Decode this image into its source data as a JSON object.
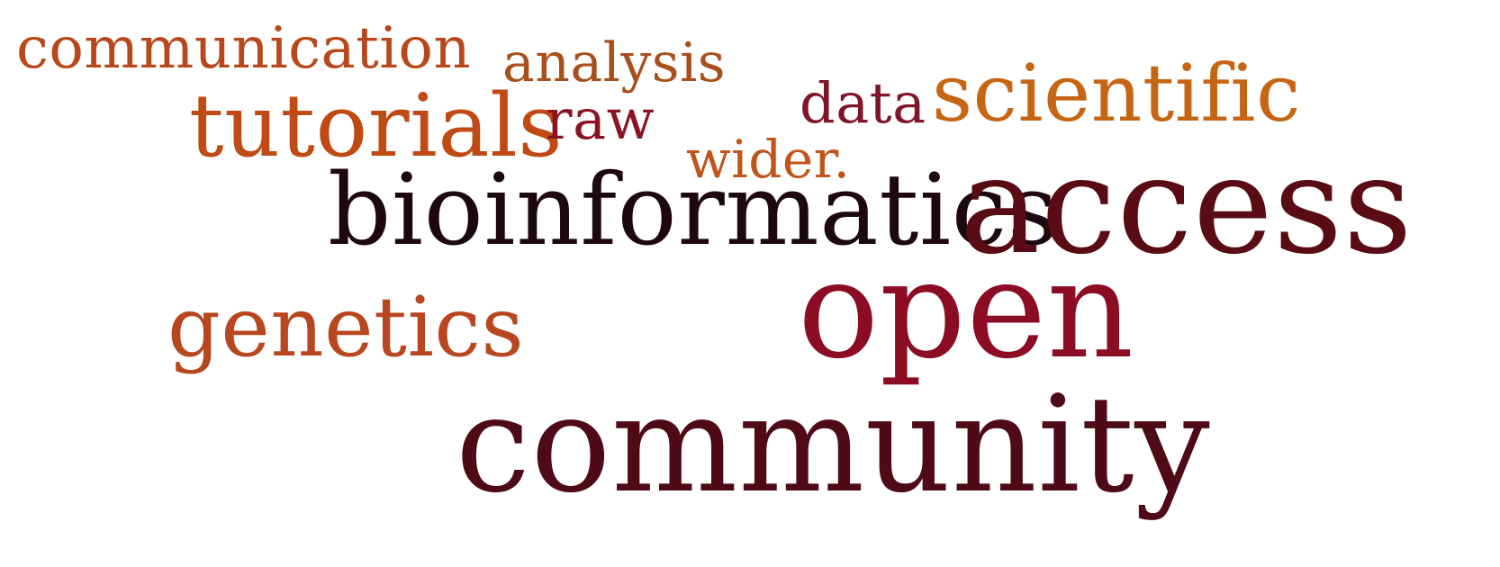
{
  "cloud": {
    "words": [
      {
        "text": "communication",
        "color": "#b8481c"
      },
      {
        "text": "analysis",
        "color": "#a8501c"
      },
      {
        "text": "tutorials",
        "color": "#c04a14"
      },
      {
        "text": "raw",
        "color": "#8a1420"
      },
      {
        "text": "data",
        "color": "#7e1628"
      },
      {
        "text": "scientific",
        "color": "#c66614"
      },
      {
        "text": "wider.",
        "color": "#c0541a"
      },
      {
        "text": "bioinformatics",
        "color": "#1e0810"
      },
      {
        "text": "access",
        "color": "#5a0c14"
      },
      {
        "text": "open",
        "color": "#8c0c24"
      },
      {
        "text": "genetics",
        "color": "#b8461e"
      },
      {
        "text": "community",
        "color": "#4e0a16"
      }
    ]
  }
}
